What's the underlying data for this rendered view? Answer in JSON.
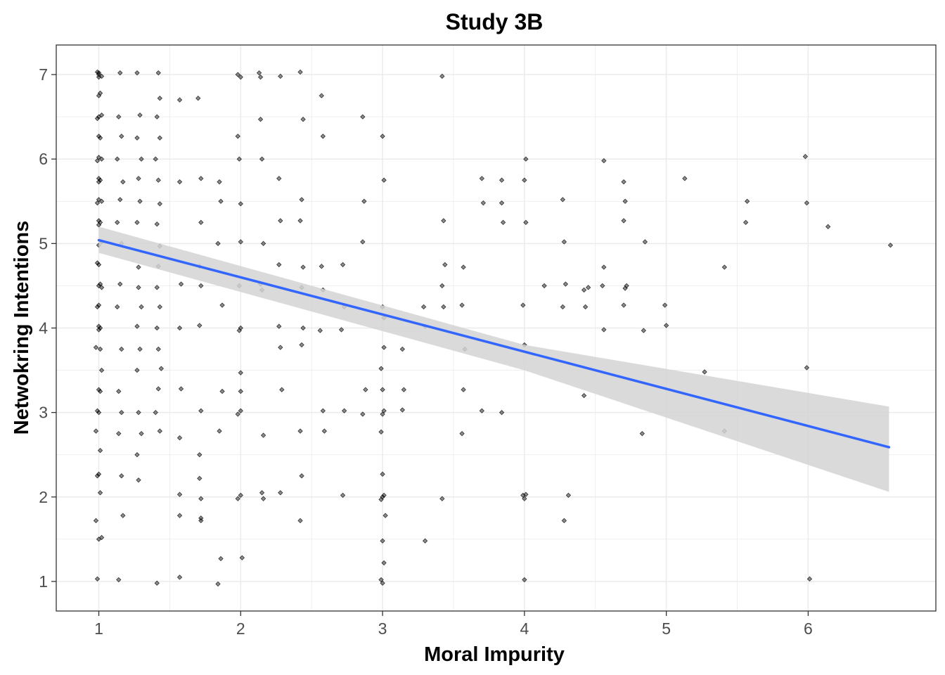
{
  "chart_data": {
    "type": "scatter",
    "title": "Study 3B",
    "xlabel": "Moral Impurity",
    "ylabel": "Netwokring Intentions",
    "xlim": [
      0.7,
      6.9
    ],
    "ylim": [
      0.65,
      7.35
    ],
    "xticks": [
      "1",
      "2",
      "3",
      "4",
      "5",
      "6"
    ],
    "yticks": [
      "1",
      "2",
      "3",
      "4",
      "5",
      "6",
      "7"
    ],
    "grid": true,
    "colors": {
      "points": "#000000",
      "fit_line": "#3366ff",
      "ribbon": "#d3d3d3",
      "grid": "#ebebeb",
      "panel_border": "#333333"
    },
    "fit": {
      "method": "linear",
      "x_range": [
        1.0,
        6.57
      ],
      "intercept": 5.48,
      "slope": -0.44
    },
    "confidence_band": {
      "x": [
        1.0,
        4.0,
        6.57
      ],
      "lower": [
        4.89,
        3.5,
        2.06
      ],
      "upper": [
        5.2,
        3.8,
        3.07
      ]
    },
    "points": [
      [
        1,
        7.02
      ],
      [
        1,
        7
      ],
      [
        1.02,
        6.98
      ],
      [
        1,
        6.97
      ],
      [
        0.99,
        7.03
      ],
      [
        1.01,
        6.78
      ],
      [
        1,
        6.75
      ],
      [
        1.02,
        6.52
      ],
      [
        1,
        6.5
      ],
      [
        0.99,
        6.48
      ],
      [
        1,
        6.27
      ],
      [
        1.01,
        6.25
      ],
      [
        1,
        6.02
      ],
      [
        1.02,
        6
      ],
      [
        0.99,
        5.98
      ],
      [
        1,
        5.77
      ],
      [
        1.01,
        5.75
      ],
      [
        1,
        5.73
      ],
      [
        1,
        5.52
      ],
      [
        1.02,
        5.5
      ],
      [
        0.99,
        5.48
      ],
      [
        1,
        5.27
      ],
      [
        1.01,
        5.25
      ],
      [
        1,
        5.22
      ],
      [
        1.02,
        5.02
      ],
      [
        1,
        4.98
      ],
      [
        0.99,
        4.77
      ],
      [
        1,
        4.75
      ],
      [
        1.01,
        4.52
      ],
      [
        1,
        4.5
      ],
      [
        1.02,
        4.48
      ],
      [
        1,
        4.27
      ],
      [
        0.99,
        4.25
      ],
      [
        1,
        4.02
      ],
      [
        1.01,
        4
      ],
      [
        1,
        3.98
      ],
      [
        0.98,
        3.77
      ],
      [
        1.01,
        3.75
      ],
      [
        1.02,
        3.5
      ],
      [
        1,
        3.27
      ],
      [
        1.01,
        3.25
      ],
      [
        0.99,
        3.02
      ],
      [
        1,
        3
      ],
      [
        0.98,
        2.78
      ],
      [
        1.01,
        2.55
      ],
      [
        1,
        2.27
      ],
      [
        0.99,
        2.25
      ],
      [
        1.01,
        2.05
      ],
      [
        0.98,
        1.72
      ],
      [
        1,
        1.5
      ],
      [
        1.02,
        1.52
      ],
      [
        0.99,
        1.03
      ],
      [
        1.15,
        7.02
      ],
      [
        1.14,
        6.5
      ],
      [
        1.16,
        6.27
      ],
      [
        1.13,
        6
      ],
      [
        1.17,
        5.73
      ],
      [
        1.15,
        5.52
      ],
      [
        1.13,
        5.25
      ],
      [
        1.16,
        5
      ],
      [
        1.15,
        4.52
      ],
      [
        1.13,
        4.25
      ],
      [
        1.16,
        3.75
      ],
      [
        1.14,
        3.25
      ],
      [
        1.16,
        3
      ],
      [
        1.14,
        2.75
      ],
      [
        1.16,
        2.25
      ],
      [
        1.17,
        1.78
      ],
      [
        1.14,
        1.02
      ],
      [
        1.27,
        7.02
      ],
      [
        1.29,
        6.52
      ],
      [
        1.27,
        6.25
      ],
      [
        1.3,
        6
      ],
      [
        1.28,
        5.77
      ],
      [
        1.29,
        5.5
      ],
      [
        1.27,
        5.25
      ],
      [
        1.28,
        4.72
      ],
      [
        1.28,
        4.48
      ],
      [
        1.3,
        4.25
      ],
      [
        1.27,
        4.02
      ],
      [
        1.29,
        3.75
      ],
      [
        1.27,
        3.5
      ],
      [
        1.28,
        3
      ],
      [
        1.3,
        2.75
      ],
      [
        1.27,
        2.5
      ],
      [
        1.28,
        2.2
      ],
      [
        1.42,
        7.02
      ],
      [
        1.43,
        6.72
      ],
      [
        1.41,
        6.5
      ],
      [
        1.43,
        6.25
      ],
      [
        1.4,
        6
      ],
      [
        1.42,
        5.75
      ],
      [
        1.43,
        5.47
      ],
      [
        1.41,
        5.23
      ],
      [
        1.43,
        4.97
      ],
      [
        1.42,
        4.73
      ],
      [
        1.41,
        4.48
      ],
      [
        1.43,
        4.25
      ],
      [
        1.41,
        4
      ],
      [
        1.42,
        3.75
      ],
      [
        1.44,
        3.52
      ],
      [
        1.42,
        3.28
      ],
      [
        1.4,
        3
      ],
      [
        1.43,
        2.78
      ],
      [
        1.41,
        0.98
      ],
      [
        1.57,
        6.7
      ],
      [
        1.57,
        5.73
      ],
      [
        1.58,
        4.52
      ],
      [
        1.57,
        4
      ],
      [
        1.58,
        3.28
      ],
      [
        1.57,
        2.7
      ],
      [
        1.57,
        2.03
      ],
      [
        1.57,
        1.78
      ],
      [
        1.57,
        1.05
      ],
      [
        1.7,
        6.72
      ],
      [
        1.72,
        5.77
      ],
      [
        1.72,
        5.25
      ],
      [
        1.71,
        4.73
      ],
      [
        1.72,
        4.5
      ],
      [
        1.71,
        4.03
      ],
      [
        1.72,
        3.02
      ],
      [
        1.71,
        2.5
      ],
      [
        1.71,
        2.22
      ],
      [
        1.72,
        1.98
      ],
      [
        1.72,
        1.75
      ],
      [
        1.72,
        1.72
      ],
      [
        1.85,
        5.73
      ],
      [
        1.86,
        5.5
      ],
      [
        1.84,
        5
      ],
      [
        1.87,
        4.27
      ],
      [
        1.87,
        3.25
      ],
      [
        1.85,
        2.78
      ],
      [
        1.86,
        1.27
      ],
      [
        1.84,
        0.97
      ],
      [
        1.98,
        7
      ],
      [
        2,
        6.97
      ],
      [
        1.98,
        6.27
      ],
      [
        1.99,
        6
      ],
      [
        2,
        5.47
      ],
      [
        2,
        5.02
      ],
      [
        1.99,
        4.5
      ],
      [
        2,
        4
      ],
      [
        1.99,
        3.97
      ],
      [
        2,
        3.47
      ],
      [
        2,
        3.25
      ],
      [
        2,
        3.02
      ],
      [
        1.98,
        2.98
      ],
      [
        2,
        2.02
      ],
      [
        1.98,
        1.98
      ],
      [
        2.01,
        1.28
      ],
      [
        2.13,
        7.02
      ],
      [
        2.14,
        6.97
      ],
      [
        2.14,
        6.47
      ],
      [
        2.15,
        6
      ],
      [
        2.16,
        5
      ],
      [
        2.14,
        4.52
      ],
      [
        2.15,
        4.45
      ],
      [
        2.16,
        2.73
      ],
      [
        2.15,
        2.05
      ],
      [
        2.16,
        1.98
      ],
      [
        2.28,
        6.98
      ],
      [
        2.27,
        5.77
      ],
      [
        2.28,
        5.27
      ],
      [
        2.27,
        4.75
      ],
      [
        2.27,
        4.02
      ],
      [
        2.28,
        3.77
      ],
      [
        2.29,
        3.27
      ],
      [
        2.28,
        2.05
      ],
      [
        2.42,
        7.03
      ],
      [
        2.44,
        6.47
      ],
      [
        2.43,
        5.52
      ],
      [
        2.42,
        5.27
      ],
      [
        2.44,
        4.72
      ],
      [
        2.43,
        4.48
      ],
      [
        2.44,
        4
      ],
      [
        2.43,
        3.8
      ],
      [
        2.42,
        2.78
      ],
      [
        2.43,
        2.25
      ],
      [
        2.42,
        1.72
      ],
      [
        2.57,
        6.75
      ],
      [
        2.58,
        6.27
      ],
      [
        2.57,
        4.73
      ],
      [
        2.58,
        4.45
      ],
      [
        2.56,
        3.97
      ],
      [
        2.58,
        3.02
      ],
      [
        2.59,
        2.78
      ],
      [
        2.72,
        4.75
      ],
      [
        2.73,
        4.25
      ],
      [
        2.71,
        3.98
      ],
      [
        2.73,
        3.02
      ],
      [
        2.72,
        2.02
      ],
      [
        2.86,
        6.5
      ],
      [
        2.87,
        5.5
      ],
      [
        2.86,
        5.02
      ],
      [
        2.88,
        3.27
      ],
      [
        2.86,
        2.98
      ],
      [
        3,
        6.27
      ],
      [
        3.01,
        5.75
      ],
      [
        3,
        4.25
      ],
      [
        3.01,
        3.77
      ],
      [
        2.99,
        3.52
      ],
      [
        3,
        3.27
      ],
      [
        3.01,
        3.02
      ],
      [
        3,
        2.98
      ],
      [
        2.99,
        2.77
      ],
      [
        3,
        2.27
      ],
      [
        3.01,
        2.02
      ],
      [
        3,
        2
      ],
      [
        2.99,
        1.97
      ],
      [
        3.02,
        1.78
      ],
      [
        3,
        1.48
      ],
      [
        3.01,
        1.22
      ],
      [
        2.99,
        1.02
      ],
      [
        3,
        0.98
      ],
      [
        3.01,
        4.12
      ],
      [
        3.14,
        3.75
      ],
      [
        3.15,
        3.27
      ],
      [
        3.14,
        3.03
      ],
      [
        3.29,
        4.25
      ],
      [
        3.3,
        4.02
      ],
      [
        3.3,
        1.48
      ],
      [
        3.42,
        6.98
      ],
      [
        3.43,
        5.27
      ],
      [
        3.44,
        4.75
      ],
      [
        3.42,
        4.5
      ],
      [
        3.43,
        4.25
      ],
      [
        3.42,
        1.98
      ],
      [
        3.57,
        4.72
      ],
      [
        3.56,
        4.27
      ],
      [
        3.58,
        3.75
      ],
      [
        3.57,
        3.27
      ],
      [
        3.56,
        2.75
      ],
      [
        3.7,
        5.77
      ],
      [
        3.71,
        5.48
      ],
      [
        3.7,
        3.02
      ],
      [
        3.84,
        5.75
      ],
      [
        3.84,
        5.48
      ],
      [
        3.85,
        5.25
      ],
      [
        3.84,
        3
      ],
      [
        3.99,
        4.27
      ],
      [
        4.01,
        6
      ],
      [
        4,
        5.75
      ],
      [
        4.01,
        5.25
      ],
      [
        4,
        3.8
      ],
      [
        3.99,
        2.02
      ],
      [
        4,
        1.98
      ],
      [
        4.01,
        2.03
      ],
      [
        4,
        1.02
      ],
      [
        4.14,
        4.5
      ],
      [
        4.27,
        5.52
      ],
      [
        4.28,
        5.02
      ],
      [
        4.29,
        4.52
      ],
      [
        4.27,
        4.25
      ],
      [
        4.28,
        1.72
      ],
      [
        4.31,
        2.02
      ],
      [
        4.42,
        4.45
      ],
      [
        4.43,
        4.25
      ],
      [
        4.45,
        4.48
      ],
      [
        4.42,
        3.2
      ],
      [
        4.56,
        5.98
      ],
      [
        4.56,
        4.72
      ],
      [
        4.55,
        4.5
      ],
      [
        4.56,
        3.98
      ],
      [
        4.7,
        5.73
      ],
      [
        4.71,
        5.5
      ],
      [
        4.7,
        5.27
      ],
      [
        4.71,
        4.47
      ],
      [
        4.72,
        4.5
      ],
      [
        4.7,
        4.27
      ],
      [
        4.85,
        5.02
      ],
      [
        4.84,
        3.97
      ],
      [
        4.83,
        2.75
      ],
      [
        4.99,
        4.27
      ],
      [
        5,
        4.03
      ],
      [
        5.13,
        5.77
      ],
      [
        5.27,
        3.48
      ],
      [
        5.41,
        4.72
      ],
      [
        5.41,
        2.78
      ],
      [
        5.56,
        5.25
      ],
      [
        5.57,
        5.5
      ],
      [
        5.98,
        6.03
      ],
      [
        5.99,
        5.48
      ],
      [
        5.99,
        3.53
      ],
      [
        6.01,
        1.03
      ],
      [
        6.14,
        5.2
      ],
      [
        6.58,
        4.98
      ]
    ]
  }
}
